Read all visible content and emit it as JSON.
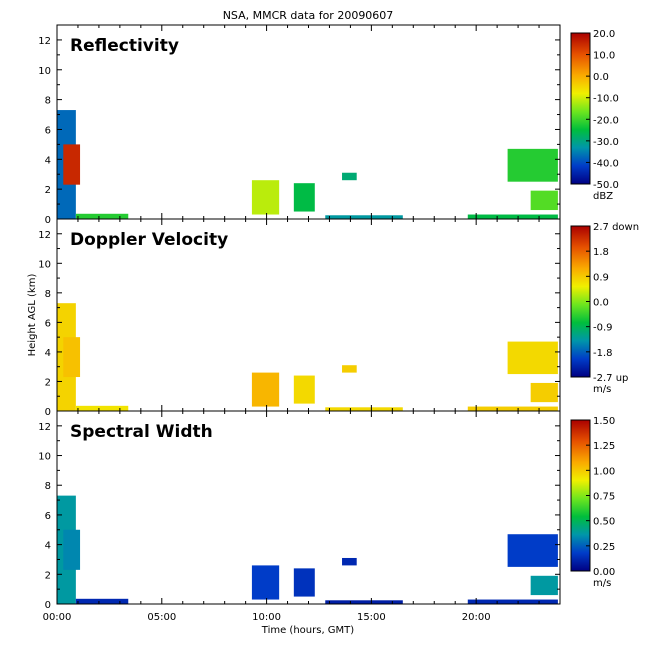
{
  "title": "NSA, MMCR data for 20090607",
  "xlabel": "Time (hours, GMT)",
  "ylabel": "Height AGL (km)",
  "x_ticklabels": [
    "00:00",
    "05:00",
    "10:00",
    "15:00",
    "20:00"
  ],
  "chart_data": [
    {
      "type": "heatmap",
      "panel_title": "Reflectivity",
      "xlim": [
        0,
        24
      ],
      "ylim": [
        0,
        13
      ],
      "yticks": [
        0,
        2,
        4,
        6,
        8,
        10,
        12
      ],
      "colorbar": {
        "unit": "dBZ",
        "range": [
          -50,
          20
        ],
        "ticklabels": [
          "20.0",
          "10.0",
          "0.0",
          "-10.0",
          "-20.0",
          "-30.0",
          "-40.0",
          "-50.0"
        ]
      },
      "echo_regions": [
        {
          "t": [
            0.0,
            0.9
          ],
          "h": [
            0.0,
            7.3
          ],
          "value": 0.18
        },
        {
          "t": [
            0.3,
            1.1
          ],
          "h": [
            2.3,
            5.0
          ],
          "value": 0.93
        },
        {
          "t": [
            0.9,
            3.4
          ],
          "h": [
            0.0,
            0.35
          ],
          "value": 0.4
        },
        {
          "t": [
            9.3,
            10.6
          ],
          "h": [
            0.3,
            2.6
          ],
          "value": 0.55
        },
        {
          "t": [
            11.3,
            12.3
          ],
          "h": [
            0.5,
            2.4
          ],
          "value": 0.35
        },
        {
          "t": [
            13.6,
            14.3
          ],
          "h": [
            2.6,
            3.1
          ],
          "value": 0.3
        },
        {
          "t": [
            12.8,
            16.5
          ],
          "h": [
            0.0,
            0.25
          ],
          "value": 0.25
        },
        {
          "t": [
            19.6,
            23.9
          ],
          "h": [
            0.0,
            0.3
          ],
          "value": 0.35
        },
        {
          "t": [
            21.5,
            23.9
          ],
          "h": [
            2.5,
            4.7
          ],
          "value": 0.4
        },
        {
          "t": [
            22.6,
            23.9
          ],
          "h": [
            0.6,
            1.9
          ],
          "value": 0.45
        }
      ]
    },
    {
      "type": "heatmap",
      "panel_title": "Doppler Velocity",
      "xlim": [
        0,
        24
      ],
      "ylim": [
        0,
        13
      ],
      "yticks": [
        0,
        2,
        4,
        6,
        8,
        10,
        12
      ],
      "colorbar": {
        "unit": "m/s",
        "range": [
          -2.7,
          2.7
        ],
        "ticklabels": [
          "2.7 down",
          "1.8",
          "0.9",
          "0.0",
          "-0.9",
          "-1.8",
          "-2.7 up"
        ]
      },
      "echo_regions": [
        {
          "t": [
            0.0,
            0.9
          ],
          "h": [
            0.0,
            7.3
          ],
          "value": 0.65
        },
        {
          "t": [
            0.3,
            1.1
          ],
          "h": [
            2.3,
            5.0
          ],
          "value": 0.68
        },
        {
          "t": [
            0.9,
            3.4
          ],
          "h": [
            0.0,
            0.35
          ],
          "value": 0.62
        },
        {
          "t": [
            9.3,
            10.6
          ],
          "h": [
            0.3,
            2.6
          ],
          "value": 0.7
        },
        {
          "t": [
            11.3,
            12.3
          ],
          "h": [
            0.5,
            2.4
          ],
          "value": 0.64
        },
        {
          "t": [
            13.6,
            14.3
          ],
          "h": [
            2.6,
            3.1
          ],
          "value": 0.66
        },
        {
          "t": [
            12.8,
            16.5
          ],
          "h": [
            0.0,
            0.25
          ],
          "value": 0.64
        },
        {
          "t": [
            19.6,
            23.9
          ],
          "h": [
            0.0,
            0.3
          ],
          "value": 0.66
        },
        {
          "t": [
            21.5,
            23.9
          ],
          "h": [
            2.5,
            4.7
          ],
          "value": 0.64
        },
        {
          "t": [
            22.6,
            23.9
          ],
          "h": [
            0.6,
            1.9
          ],
          "value": 0.66
        }
      ]
    },
    {
      "type": "heatmap",
      "panel_title": "Spectral Width",
      "xlim": [
        0,
        24
      ],
      "ylim": [
        0,
        13
      ],
      "yticks": [
        0,
        2,
        4,
        6,
        8,
        10,
        12
      ],
      "colorbar": {
        "unit": "m/s",
        "range": [
          0,
          1.5
        ],
        "ticklabels": [
          "1.50",
          "1.25",
          "1.00",
          "0.75",
          "0.50",
          "0.25",
          "0.00"
        ]
      },
      "echo_regions": [
        {
          "t": [
            0.0,
            0.9
          ],
          "h": [
            0.0,
            7.3
          ],
          "value": 0.25
        },
        {
          "t": [
            0.3,
            1.1
          ],
          "h": [
            2.3,
            5.0
          ],
          "value": 0.22
        },
        {
          "t": [
            0.9,
            3.4
          ],
          "h": [
            0.0,
            0.35
          ],
          "value": 0.08
        },
        {
          "t": [
            9.3,
            10.6
          ],
          "h": [
            0.3,
            2.6
          ],
          "value": 0.12
        },
        {
          "t": [
            11.3,
            12.3
          ],
          "h": [
            0.5,
            2.4
          ],
          "value": 0.1
        },
        {
          "t": [
            13.6,
            14.3
          ],
          "h": [
            2.6,
            3.1
          ],
          "value": 0.08
        },
        {
          "t": [
            12.8,
            16.5
          ],
          "h": [
            0.0,
            0.25
          ],
          "value": 0.06
        },
        {
          "t": [
            19.6,
            23.9
          ],
          "h": [
            0.0,
            0.3
          ],
          "value": 0.08
        },
        {
          "t": [
            21.5,
            23.9
          ],
          "h": [
            2.5,
            4.7
          ],
          "value": 0.12
        },
        {
          "t": [
            22.6,
            23.9
          ],
          "h": [
            0.6,
            1.9
          ],
          "value": 0.25
        }
      ]
    }
  ]
}
